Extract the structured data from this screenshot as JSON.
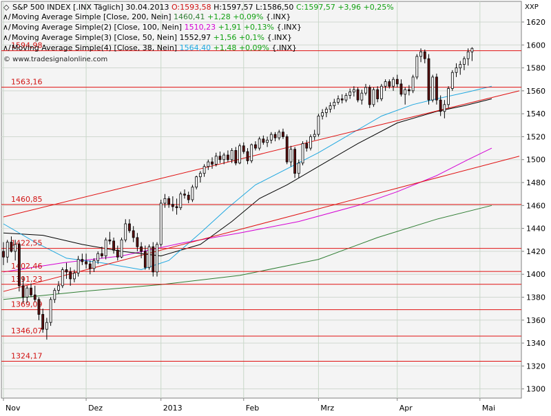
{
  "chart_data": {
    "type": "candlestick",
    "corner_label": "XXP",
    "watermark": "© www.tradesignalonline.com",
    "header": {
      "symbol_label": "S&P 500 INDEX [.INX  Täglich]",
      "date": "30.04.2013",
      "open_label": "O:1593,58",
      "high_label": "H:1597,57",
      "low_label": "L:1586,50",
      "close_label": "C:1597,57",
      "change_label": "+3,96",
      "change_pct_label": "+0,25%"
    },
    "legend": [
      {
        "text": "Moving Average Simple [Close, 200, Nein]",
        "value": "1460,41",
        "change": "+1,28",
        "change_pct": "+0,09%",
        "suffix": "{.INX}",
        "color": "#2e7d32"
      },
      {
        "text": "Moving Average Simple(2) [Close, 100, Nein]",
        "value": "1510,23",
        "change": "+1,91",
        "change_pct": "+0,13%",
        "suffix": "{.INX}",
        "color": "#d400d4"
      },
      {
        "text": "Moving Average Simple(3) [Close, 50, Nein]",
        "value": "1552,97",
        "change": "+1,56",
        "change_pct": "+0,1%",
        "suffix": "{.INX}",
        "color": "#000000"
      },
      {
        "text": "Moving Average Simple(4) [Close, 38, Nein]",
        "value": "1564,40",
        "change": "+1,48",
        "change_pct": "+0,09%",
        "suffix": "{.INX}",
        "color": "#1ea7e0"
      }
    ],
    "ylim": [
      1292,
      1638
    ],
    "yticks": [
      1300,
      1320,
      1340,
      1360,
      1380,
      1400,
      1420,
      1440,
      1460,
      1480,
      1500,
      1520,
      1540,
      1560,
      1580,
      1600,
      1620
    ],
    "x_range": [
      0,
      131
    ],
    "xticks": [
      {
        "label": "Nov",
        "x": 0
      },
      {
        "label": "Dez",
        "x": 21
      },
      {
        "label": "2013",
        "x": 40
      },
      {
        "label": "Feb",
        "x": 61
      },
      {
        "label": "Mrz",
        "x": 80
      },
      {
        "label": "Apr",
        "x": 100
      },
      {
        "label": "Mai",
        "x": 121
      }
    ],
    "horizontal_lines": [
      {
        "label": "1594,98",
        "value": 1594.98
      },
      {
        "label": "1563,16",
        "value": 1563.16
      },
      {
        "label": "1460,85",
        "value": 1460.85
      },
      {
        "label": "1422,55",
        "value": 1422.55
      },
      {
        "label": "1402,46",
        "value": 1402.46
      },
      {
        "label": "1391,23",
        "value": 1391.23
      },
      {
        "label": "1369,09",
        "value": 1369.09
      },
      {
        "label": "1346,07",
        "value": 1346.07
      },
      {
        "label": "1324,17",
        "value": 1324.17
      }
    ],
    "trend_lines": [
      {
        "points": [
          [
            0,
            1450
          ],
          [
            131,
            1560
          ]
        ]
      },
      {
        "points": [
          [
            0,
            1385
          ],
          [
            131,
            1503
          ]
        ]
      }
    ],
    "candles": [
      [
        1420,
        1428,
        1408,
        1415
      ],
      [
        1415,
        1430,
        1410,
        1428
      ],
      [
        1428,
        1433,
        1419,
        1420
      ],
      [
        1420,
        1430,
        1412,
        1426
      ],
      [
        1426,
        1428,
        1385,
        1390
      ],
      [
        1390,
        1398,
        1375,
        1380
      ],
      [
        1380,
        1390,
        1375,
        1388
      ],
      [
        1388,
        1392,
        1380,
        1382
      ],
      [
        1382,
        1390,
        1376,
        1378
      ],
      [
        1378,
        1380,
        1360,
        1365
      ],
      [
        1365,
        1370,
        1349,
        1352
      ],
      [
        1352,
        1362,
        1343,
        1358
      ],
      [
        1358,
        1380,
        1355,
        1378
      ],
      [
        1378,
        1388,
        1375,
        1386
      ],
      [
        1386,
        1394,
        1383,
        1390
      ],
      [
        1390,
        1406,
        1388,
        1404
      ],
      [
        1404,
        1410,
        1396,
        1402
      ],
      [
        1402,
        1406,
        1390,
        1396
      ],
      [
        1396,
        1404,
        1393,
        1401
      ],
      [
        1401,
        1416,
        1398,
        1413
      ],
      [
        1413,
        1418,
        1408,
        1411
      ],
      [
        1411,
        1418,
        1405,
        1409
      ],
      [
        1409,
        1412,
        1400,
        1405
      ],
      [
        1405,
        1414,
        1402,
        1412
      ],
      [
        1412,
        1420,
        1409,
        1418
      ],
      [
        1418,
        1424,
        1414,
        1416
      ],
      [
        1416,
        1432,
        1413,
        1430
      ],
      [
        1430,
        1437,
        1426,
        1429
      ],
      [
        1429,
        1432,
        1418,
        1421
      ],
      [
        1421,
        1425,
        1412,
        1415
      ],
      [
        1415,
        1432,
        1414,
        1430
      ],
      [
        1430,
        1448,
        1428,
        1444
      ],
      [
        1444,
        1448,
        1436,
        1438
      ],
      [
        1438,
        1442,
        1428,
        1432
      ],
      [
        1432,
        1436,
        1420,
        1424
      ],
      [
        1424,
        1428,
        1414,
        1420
      ],
      [
        1420,
        1425,
        1404,
        1406
      ],
      [
        1406,
        1426,
        1404,
        1424
      ],
      [
        1424,
        1428,
        1398,
        1402
      ],
      [
        1402,
        1428,
        1398,
        1426
      ],
      [
        1426,
        1465,
        1424,
        1462
      ],
      [
        1462,
        1470,
        1458,
        1466
      ],
      [
        1466,
        1468,
        1458,
        1461
      ],
      [
        1461,
        1468,
        1455,
        1459
      ],
      [
        1459,
        1466,
        1452,
        1458
      ],
      [
        1458,
        1472,
        1456,
        1470
      ],
      [
        1470,
        1474,
        1466,
        1469
      ],
      [
        1469,
        1472,
        1462,
        1465
      ],
      [
        1465,
        1478,
        1463,
        1476
      ],
      [
        1476,
        1486,
        1474,
        1485
      ],
      [
        1485,
        1490,
        1480,
        1488
      ],
      [
        1488,
        1496,
        1485,
        1494
      ],
      [
        1494,
        1500,
        1491,
        1498
      ],
      [
        1498,
        1502,
        1492,
        1496
      ],
      [
        1496,
        1506,
        1494,
        1503
      ],
      [
        1503,
        1507,
        1497,
        1500
      ],
      [
        1500,
        1506,
        1496,
        1504
      ],
      [
        1504,
        1508,
        1498,
        1500
      ],
      [
        1500,
        1510,
        1497,
        1508
      ],
      [
        1508,
        1511,
        1495,
        1497
      ],
      [
        1497,
        1514,
        1496,
        1512
      ],
      [
        1512,
        1515,
        1505,
        1507
      ],
      [
        1507,
        1510,
        1496,
        1499
      ],
      [
        1499,
        1514,
        1497,
        1513
      ],
      [
        1513,
        1516,
        1508,
        1510
      ],
      [
        1510,
        1520,
        1508,
        1518
      ],
      [
        1518,
        1521,
        1513,
        1515
      ],
      [
        1515,
        1520,
        1511,
        1517
      ],
      [
        1517,
        1524,
        1514,
        1522
      ],
      [
        1522,
        1524,
        1516,
        1519
      ],
      [
        1519,
        1526,
        1517,
        1524
      ],
      [
        1524,
        1527,
        1518,
        1520
      ],
      [
        1520,
        1522,
        1496,
        1498
      ],
      [
        1498,
        1512,
        1494,
        1509
      ],
      [
        1509,
        1511,
        1484,
        1488
      ],
      [
        1488,
        1500,
        1484,
        1497
      ],
      [
        1497,
        1516,
        1495,
        1514
      ],
      [
        1514,
        1517,
        1507,
        1510
      ],
      [
        1510,
        1522,
        1508,
        1520
      ],
      [
        1520,
        1526,
        1517,
        1522
      ],
      [
        1522,
        1540,
        1520,
        1538
      ],
      [
        1538,
        1544,
        1535,
        1541
      ],
      [
        1541,
        1546,
        1537,
        1544
      ],
      [
        1544,
        1550,
        1541,
        1547
      ],
      [
        1547,
        1553,
        1544,
        1550
      ],
      [
        1550,
        1556,
        1548,
        1553
      ],
      [
        1553,
        1557,
        1549,
        1552
      ],
      [
        1552,
        1558,
        1550,
        1556
      ],
      [
        1556,
        1562,
        1553,
        1559
      ],
      [
        1559,
        1564,
        1555,
        1561
      ],
      [
        1561,
        1563,
        1550,
        1552
      ],
      [
        1552,
        1561,
        1548,
        1558
      ],
      [
        1558,
        1566,
        1556,
        1563
      ],
      [
        1563,
        1565,
        1545,
        1548
      ],
      [
        1548,
        1563,
        1546,
        1561
      ],
      [
        1561,
        1564,
        1550,
        1553
      ],
      [
        1553,
        1566,
        1551,
        1564
      ],
      [
        1564,
        1570,
        1560,
        1568
      ],
      [
        1568,
        1570,
        1562,
        1564
      ],
      [
        1564,
        1572,
        1560,
        1570
      ],
      [
        1570,
        1574,
        1563,
        1566
      ],
      [
        1566,
        1570,
        1555,
        1557
      ],
      [
        1557,
        1563,
        1548,
        1561
      ],
      [
        1561,
        1565,
        1556,
        1560
      ],
      [
        1560,
        1574,
        1558,
        1572
      ],
      [
        1572,
        1592,
        1570,
        1590
      ],
      [
        1590,
        1597,
        1585,
        1594
      ],
      [
        1594,
        1596,
        1584,
        1588
      ],
      [
        1588,
        1592,
        1548,
        1552
      ],
      [
        1552,
        1574,
        1550,
        1572
      ],
      [
        1572,
        1575,
        1548,
        1552
      ],
      [
        1552,
        1556,
        1538,
        1542
      ],
      [
        1542,
        1552,
        1536,
        1548
      ],
      [
        1548,
        1564,
        1545,
        1562
      ],
      [
        1562,
        1578,
        1560,
        1576
      ],
      [
        1576,
        1584,
        1572,
        1580
      ],
      [
        1580,
        1586,
        1574,
        1583
      ],
      [
        1583,
        1590,
        1578,
        1588
      ],
      [
        1588,
        1597,
        1582,
        1594
      ],
      [
        1594,
        1598,
        1586,
        1597
      ]
    ],
    "moving_averages": [
      {
        "name": "Moving Average Simple [Close, 200, Nein]",
        "color": "#2e7d32",
        "points": [
          [
            0,
            1378
          ],
          [
            20,
            1385
          ],
          [
            40,
            1391
          ],
          [
            60,
            1399
          ],
          [
            80,
            1413
          ],
          [
            95,
            1432
          ],
          [
            110,
            1448
          ],
          [
            124,
            1460
          ]
        ]
      },
      {
        "name": "Moving Average Simple(2) [Close, 100, Nein]",
        "color": "#d400d4",
        "points": [
          [
            0,
            1402
          ],
          [
            15,
            1410
          ],
          [
            30,
            1416
          ],
          [
            45,
            1427
          ],
          [
            60,
            1436
          ],
          [
            75,
            1446
          ],
          [
            90,
            1460
          ],
          [
            100,
            1472
          ],
          [
            110,
            1486
          ],
          [
            118,
            1500
          ],
          [
            124,
            1510
          ]
        ]
      },
      {
        "name": "Moving Average Simple(3) [Close, 50, Nein]",
        "color": "#000000",
        "points": [
          [
            0,
            1436
          ],
          [
            10,
            1434
          ],
          [
            20,
            1426
          ],
          [
            30,
            1420
          ],
          [
            40,
            1416
          ],
          [
            50,
            1426
          ],
          [
            58,
            1446
          ],
          [
            65,
            1466
          ],
          [
            72,
            1478
          ],
          [
            80,
            1494
          ],
          [
            90,
            1514
          ],
          [
            100,
            1532
          ],
          [
            110,
            1542
          ],
          [
            117,
            1547
          ],
          [
            124,
            1553
          ]
        ]
      },
      {
        "name": "Moving Average Simple(4) [Close, 38, Nein]",
        "color": "#1ea7e0",
        "points": [
          [
            0,
            1444
          ],
          [
            8,
            1428
          ],
          [
            16,
            1414
          ],
          [
            25,
            1410
          ],
          [
            35,
            1404
          ],
          [
            42,
            1412
          ],
          [
            50,
            1436
          ],
          [
            57,
            1458
          ],
          [
            64,
            1478
          ],
          [
            72,
            1492
          ],
          [
            80,
            1506
          ],
          [
            88,
            1522
          ],
          [
            96,
            1538
          ],
          [
            104,
            1548
          ],
          [
            110,
            1553
          ],
          [
            118,
            1559
          ],
          [
            124,
            1564
          ]
        ]
      }
    ]
  }
}
